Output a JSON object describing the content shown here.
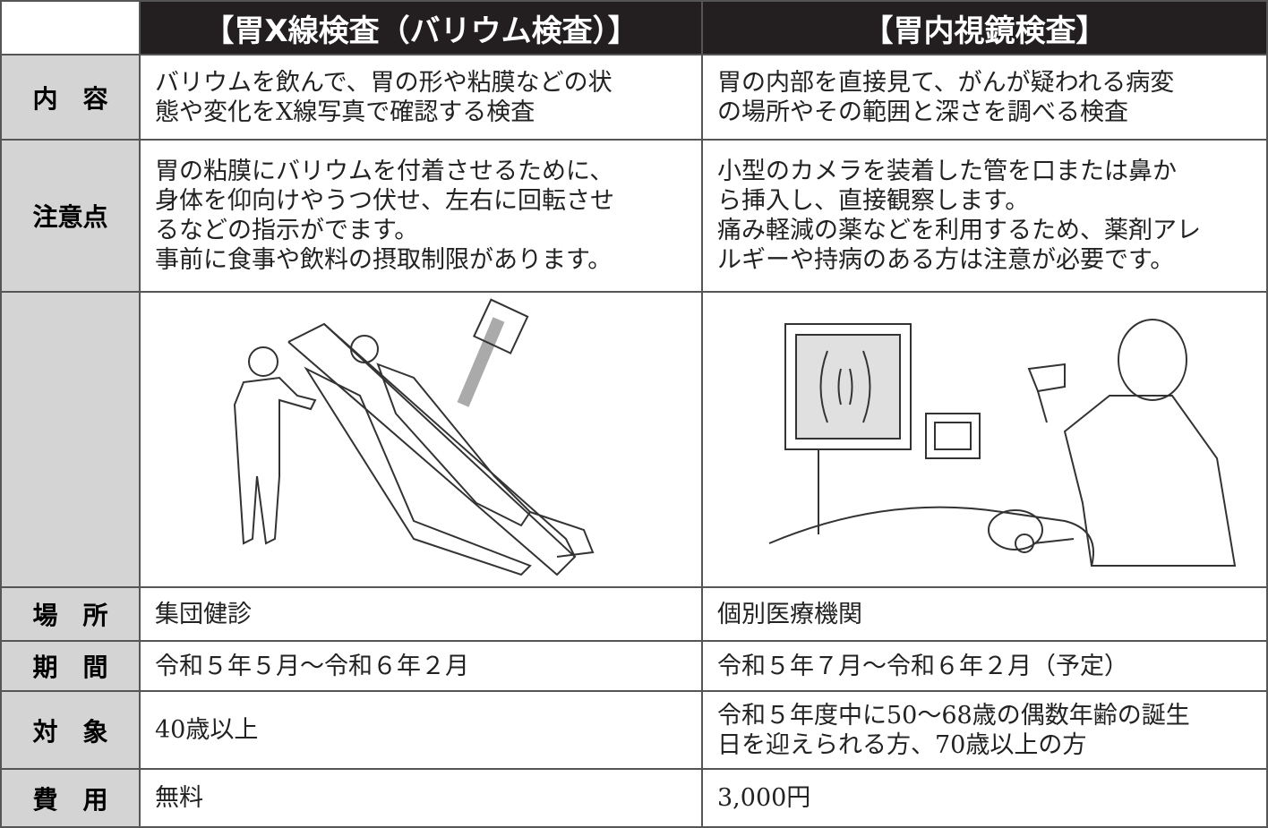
{
  "table": {
    "header": [
      "【胃X線検査（バリウム検査）】",
      "【胃内視鏡検査】"
    ],
    "rows": [
      {
        "label": "内　容",
        "cells": [
          [
            "バリウムを飲んで、胃の形や粘膜などの状",
            "態や変化をX線写真で確認する検査"
          ],
          [
            "胃の内部を直接見て、がんが疑われる病変",
            "の場所やその範囲と深さを調べる検査"
          ]
        ]
      },
      {
        "label": "注意点",
        "cells": [
          [
            "胃の粘膜にバリウムを付着させるために、",
            "身体を仰向けやうつ伏せ、左右に回転させ",
            "るなどの指示がでます。",
            "事前に食事や飲料の摂取制限があります。"
          ],
          [
            "小型のカメラを装着した管を口または鼻か",
            "ら挿入し、直接観察します。",
            "痛み軽減の薬などを利用するため、薬剤アレ",
            "ルギーや持病のある方は注意が必要です。"
          ]
        ]
      },
      {
        "label": "場　所",
        "cells": [
          [
            "集団健診"
          ],
          [
            "個別医療機関"
          ]
        ]
      },
      {
        "label": "期　間",
        "cells": [
          [
            "令和５年５月～令和６年２月"
          ],
          [
            "令和５年７月～令和６年２月（予定）"
          ]
        ]
      },
      {
        "label": "対　象",
        "cells": [
          [
            "40歳以上"
          ],
          [
            "令和５年度中に50～68歳の偶数年齢の誕生",
            "日を迎えられる方、70歳以上の方"
          ]
        ]
      },
      {
        "label": "費　用",
        "cells": [
          [
            "無料"
          ],
          [
            "3,000円"
          ]
        ]
      }
    ]
  }
}
